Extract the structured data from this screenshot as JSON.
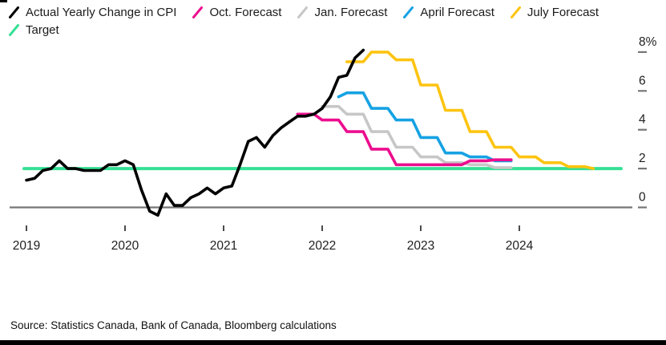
{
  "header": {
    "legend_items": [
      {
        "id": "actual",
        "label": "Actual Yearly Change in CPI",
        "color": "#000000"
      },
      {
        "id": "oct",
        "label": "Oct. Forecast",
        "color": "#ec0e8e"
      },
      {
        "id": "jan",
        "label": "Jan. Forecast",
        "color": "#c7c7c7"
      },
      {
        "id": "april",
        "label": "April Forecast",
        "color": "#16a2e3"
      },
      {
        "id": "july",
        "label": "July Forecast",
        "color": "#fdc411"
      },
      {
        "id": "target",
        "label": "Target",
        "color": "#35e095"
      }
    ]
  },
  "footer": {
    "source_text": "Source: Statistics Canada, Bank of Canada, Bloomberg calculations"
  },
  "colors": {
    "actual": "#000000",
    "oct_forecast": "#ec0e8e",
    "jan_forecast": "#c7c7c7",
    "april_forecast": "#16a2e3",
    "july_forecast": "#fdc411",
    "target": "#35e095",
    "axis": "#767676",
    "tick": "#4a4a4a",
    "label_text": "#1f1f1f"
  },
  "chart_data": {
    "type": "line",
    "title": "",
    "x_axis": {
      "unit": "month",
      "start": "2019-01",
      "tick_labels": [
        "2019",
        "2020",
        "2021",
        "2022",
        "2023",
        "2024"
      ],
      "tick_month_index": [
        0,
        12,
        24,
        36,
        48,
        60
      ]
    },
    "y_axis": {
      "tick_labels": [
        "8%",
        "6",
        "4",
        "2",
        "0"
      ],
      "tick_values": [
        8,
        6,
        4,
        2,
        0
      ],
      "range": [
        -1,
        8.5
      ],
      "side": "right",
      "grid": false
    },
    "legend_position": "top",
    "target": {
      "label": "Target",
      "value": 2.0,
      "color": "#35e095"
    },
    "series": [
      {
        "name": "Actual Yearly Change in CPI",
        "color": "#000000",
        "start_month_index": 0,
        "monthly_values": [
          1.4,
          1.5,
          1.9,
          2.0,
          2.4,
          2.0,
          2.0,
          1.9,
          1.9,
          1.9,
          2.2,
          2.2,
          2.4,
          2.2,
          0.9,
          -0.2,
          -0.4,
          0.7,
          0.1,
          0.1,
          0.5,
          0.7,
          1.0,
          0.7,
          1.0,
          1.1,
          2.2,
          3.4,
          3.6,
          3.1,
          3.7,
          4.1,
          4.4,
          4.7,
          4.7,
          4.8,
          5.1,
          5.7,
          6.7,
          6.8,
          7.7,
          8.1
        ]
      },
      {
        "name": "Oct. Forecast",
        "color": "#ec0e8e",
        "start_month_index": 33,
        "monthly_values": [
          4.8,
          4.8,
          4.8,
          4.5,
          4.5,
          4.5,
          3.9,
          3.9,
          3.9,
          3.0,
          3.0,
          3.0,
          2.2,
          2.2,
          2.2,
          2.2,
          2.2,
          2.2,
          2.2,
          2.2,
          2.2,
          2.4,
          2.4,
          2.4,
          2.45,
          2.45,
          2.45
        ]
      },
      {
        "name": "Jan. Forecast",
        "color": "#c7c7c7",
        "start_month_index": 36,
        "monthly_values": [
          5.2,
          5.2,
          5.2,
          4.8,
          4.8,
          4.8,
          3.9,
          3.9,
          3.9,
          3.1,
          3.1,
          3.1,
          2.6,
          2.6,
          2.6,
          2.3,
          2.3,
          2.3,
          2.2,
          2.2,
          2.2,
          2.05,
          2.05,
          2.05
        ]
      },
      {
        "name": "April Forecast",
        "color": "#16a2e3",
        "start_month_index": 38,
        "monthly_values": [
          5.7,
          5.9,
          5.9,
          5.9,
          5.1,
          5.1,
          5.1,
          4.5,
          4.5,
          4.5,
          3.6,
          3.6,
          3.6,
          2.8,
          2.8,
          2.8,
          2.6,
          2.6,
          2.6,
          2.4,
          2.4,
          2.4
        ]
      },
      {
        "name": "July Forecast",
        "color": "#fdc411",
        "start_month_index": 39,
        "monthly_values": [
          7.5,
          7.5,
          7.5,
          8.0,
          8.0,
          8.0,
          7.6,
          7.6,
          7.6,
          6.3,
          6.3,
          6.3,
          5.0,
          5.0,
          5.0,
          3.9,
          3.9,
          3.9,
          3.1,
          3.1,
          3.1,
          2.6,
          2.6,
          2.6,
          2.3,
          2.3,
          2.3,
          2.1,
          2.1,
          2.1,
          2.0
        ]
      }
    ]
  }
}
